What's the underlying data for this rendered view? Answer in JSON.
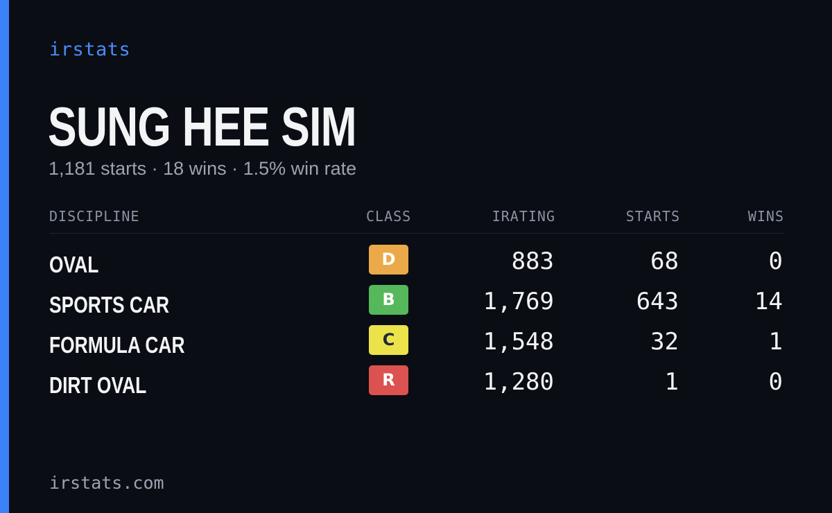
{
  "brand": "irstats",
  "driver": {
    "name": "SUNG HEE SIM",
    "summary": "1,181 starts · 18 wins · 1.5% win rate"
  },
  "table": {
    "headers": {
      "discipline": "DISCIPLINE",
      "class": "CLASS",
      "irating": "IRATING",
      "starts": "STARTS",
      "wins": "WINS"
    },
    "rows": [
      {
        "discipline": "OVAL",
        "class": "D",
        "class_bg": "#eba94a",
        "class_fg": "#ffffff",
        "irating": "883",
        "starts": "68",
        "wins": "0"
      },
      {
        "discipline": "SPORTS CAR",
        "class": "B",
        "class_bg": "#55b85a",
        "class_fg": "#ffffff",
        "irating": "1,769",
        "starts": "643",
        "wins": "14"
      },
      {
        "discipline": "FORMULA CAR",
        "class": "C",
        "class_bg": "#ece24a",
        "class_fg": "#1f2937",
        "irating": "1,548",
        "starts": "32",
        "wins": "1"
      },
      {
        "discipline": "DIRT OVAL",
        "class": "R",
        "class_bg": "#dc5250",
        "class_fg": "#ffffff",
        "irating": "1,280",
        "starts": "1",
        "wins": "0"
      }
    ]
  },
  "footer": "irstats.com",
  "colors": {
    "background": "#0a0d14",
    "accent": "#3b82f6",
    "text_primary": "#f3f4f6",
    "text_muted": "#9ca3af"
  }
}
